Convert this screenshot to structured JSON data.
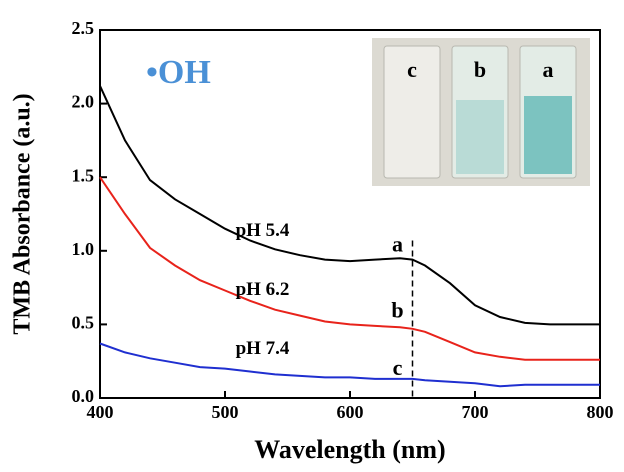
{
  "chart_data": {
    "type": "line",
    "annotation": "•OH",
    "xlabel": "Wavelength (nm)",
    "ylabel": "TMB Absorbance (a.u.)",
    "x": [
      400,
      420,
      440,
      460,
      480,
      500,
      520,
      540,
      560,
      580,
      600,
      620,
      640,
      650,
      660,
      680,
      700,
      720,
      740,
      760,
      780,
      800
    ],
    "series": [
      {
        "name": "pH 5.4",
        "color": "#000000",
        "values": [
          2.12,
          1.75,
          1.48,
          1.35,
          1.25,
          1.15,
          1.07,
          1.01,
          0.97,
          0.94,
          0.93,
          0.94,
          0.95,
          0.94,
          0.9,
          0.78,
          0.63,
          0.55,
          0.51,
          0.5,
          0.5,
          0.5
        ]
      },
      {
        "name": "pH 6.2",
        "color": "#e8231b",
        "values": [
          1.5,
          1.25,
          1.02,
          0.9,
          0.8,
          0.73,
          0.66,
          0.6,
          0.56,
          0.52,
          0.5,
          0.49,
          0.48,
          0.47,
          0.45,
          0.38,
          0.31,
          0.28,
          0.26,
          0.26,
          0.26,
          0.26
        ]
      },
      {
        "name": "pH 7.4",
        "color": "#1f2fd0",
        "values": [
          0.37,
          0.31,
          0.27,
          0.24,
          0.21,
          0.2,
          0.18,
          0.16,
          0.15,
          0.14,
          0.14,
          0.13,
          0.13,
          0.13,
          0.12,
          0.11,
          0.1,
          0.08,
          0.09,
          0.09,
          0.09,
          0.09
        ]
      }
    ],
    "curve_labels": [
      "a",
      "b",
      "c"
    ],
    "inset_labels": [
      "c",
      "b",
      "a"
    ],
    "reference_line_x": 650,
    "xlim": [
      400,
      800
    ],
    "xticks": [
      400,
      500,
      600,
      700,
      800
    ],
    "ylim": [
      0,
      2.5
    ],
    "yticks": [
      {
        "value": 0,
        "label": "0.0"
      },
      0.5,
      {
        "value": 1,
        "label": "1.0"
      },
      1.5,
      {
        "value": 2,
        "label": "2.0"
      },
      2.5
    ]
  }
}
